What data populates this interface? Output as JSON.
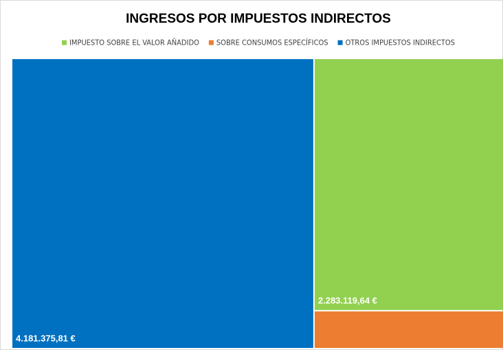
{
  "chart_data": {
    "type": "treemap",
    "title": "INGRESOS POR IMPUESTOS INDIRECTOS",
    "categories": [
      "IMPUESTO SOBRE EL VALOR AÑADIDO",
      "SOBRE CONSUMOS ESPECÍFICOS",
      "OTROS IMPUESTOS INDIRECTOS"
    ],
    "values": [
      2283119.64,
      338000,
      4181375.81
    ],
    "value_labels": [
      "2.283.119,64 €",
      null,
      "4.181.375,81 €"
    ],
    "colors": [
      "#92d050",
      "#ed7d31",
      "#0070c0"
    ]
  }
}
